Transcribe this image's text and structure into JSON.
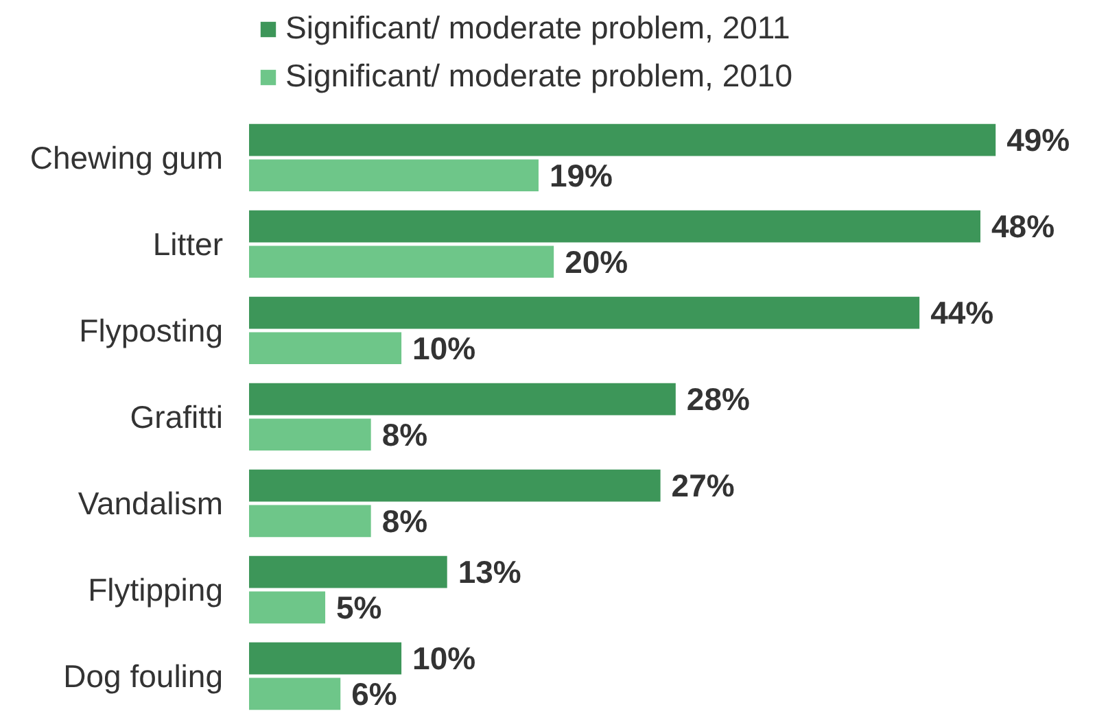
{
  "chart_data": {
    "type": "bar",
    "orientation": "horizontal",
    "categories": [
      "Chewing gum",
      "Litter",
      "Flyposting",
      "Grafitti",
      "Vandalism",
      "Flytipping",
      "Dog fouling"
    ],
    "series": [
      {
        "name": "Significant/ moderate problem, 2011",
        "color": "#3d9659",
        "values": [
          49,
          48,
          44,
          28,
          27,
          13,
          10
        ],
        "value_labels": [
          "49%",
          "48%",
          "44%",
          "28%",
          "27%",
          "13%",
          "10%"
        ]
      },
      {
        "name": "Significant/ moderate problem, 2010",
        "color": "#6ec689",
        "values": [
          19,
          20,
          10,
          8,
          8,
          5,
          6
        ],
        "value_labels": [
          "19%",
          "20%",
          "10%",
          "8%",
          "8%",
          "5%",
          "6%"
        ]
      }
    ],
    "legend": "top left",
    "tick_labels": "y"
  }
}
